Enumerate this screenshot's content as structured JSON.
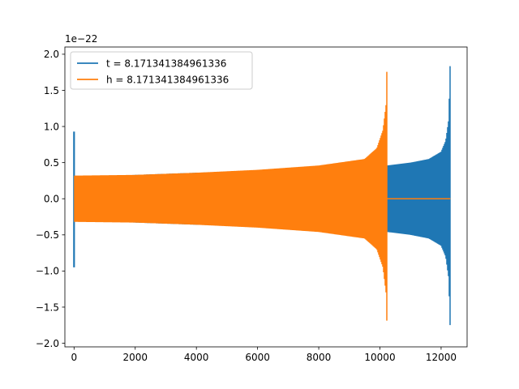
{
  "chart_data": {
    "type": "line",
    "title": "",
    "xlabel": "",
    "ylabel": "",
    "y_offset_text": "1e−22",
    "xlim": [
      -300,
      12850
    ],
    "ylim": [
      -2.05,
      2.1
    ],
    "x_ticks": [
      0,
      2000,
      4000,
      6000,
      8000,
      10000,
      12000
    ],
    "x_tick_labels": [
      "0",
      "2000",
      "4000",
      "6000",
      "8000",
      "10000",
      "12000"
    ],
    "y_ticks": [
      2.0,
      1.5,
      1.0,
      0.5,
      0.0,
      -0.5,
      -1.0,
      -1.5,
      -2.0
    ],
    "y_tick_labels": [
      "2.0",
      "1.5",
      "1.0",
      "0.5",
      "0.0",
      "−0.5",
      "−1.0",
      "−1.5",
      "−2.0"
    ],
    "grid": false,
    "legend_position": "top-left",
    "series": [
      {
        "name": "t = 8.171341384961336",
        "color": "#1f77b4",
        "envelope": {
          "start_spike_x": 0,
          "start_spike_range": [
            -0.95,
            0.93
          ],
          "x": [
            0,
            2000,
            4000,
            6000,
            8000,
            10000,
            10236,
            11000,
            11600,
            12000,
            12150,
            12250,
            12300
          ],
          "upper": [
            0.3,
            0.33,
            0.36,
            0.38,
            0.4,
            0.44,
            0.46,
            0.5,
            0.55,
            0.65,
            0.8,
            1.1,
            1.95
          ],
          "lower": [
            -0.3,
            -0.33,
            -0.36,
            -0.38,
            -0.4,
            -0.44,
            -0.46,
            -0.5,
            -0.55,
            -0.65,
            -0.8,
            -1.1,
            -1.85
          ],
          "end_x": 12300
        }
      },
      {
        "name": "h = 8.171341384961336",
        "color": "#ff7f0e",
        "envelope": {
          "x": [
            0,
            2000,
            4000,
            6000,
            8000,
            9500,
            9900,
            10100,
            10200,
            10236
          ],
          "upper": [
            0.32,
            0.33,
            0.36,
            0.4,
            0.46,
            0.55,
            0.7,
            0.95,
            1.3,
            1.95
          ],
          "lower": [
            -0.32,
            -0.33,
            -0.36,
            -0.4,
            -0.46,
            -0.55,
            -0.7,
            -0.95,
            -1.3,
            -1.85
          ],
          "end_x": 10236,
          "zero_tail_x": [
            10236,
            12300
          ]
        }
      }
    ]
  }
}
